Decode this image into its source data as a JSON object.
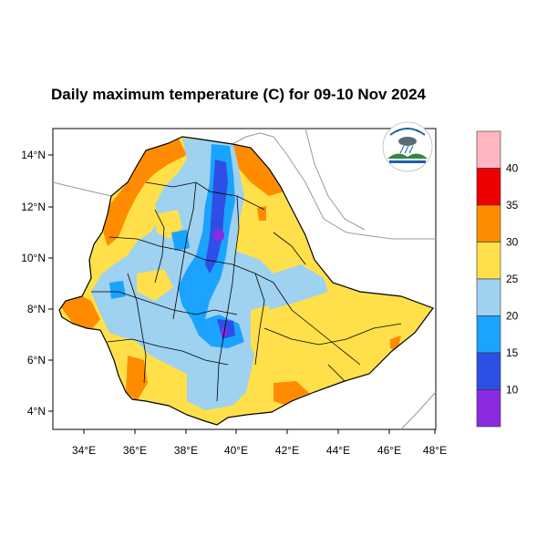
{
  "title": "Daily maximum temperature (C) for 09-10 Nov 2024",
  "map": {
    "lon_range": [
      33,
      48
    ],
    "lat_range": [
      3.2,
      15
    ],
    "x_ticks": [
      "34°E",
      "36°E",
      "38°E",
      "40°E",
      "42°E",
      "44°E",
      "46°E",
      "48°E"
    ],
    "y_ticks": [
      "14°N",
      "12°N",
      "10°N",
      "8°N",
      "6°N",
      "4°N"
    ],
    "logo_name": "ethiopian-meteorology-institute-logo"
  },
  "colorbar": {
    "labels": [
      "40",
      "35",
      "30",
      "25",
      "20",
      "15",
      "10"
    ],
    "colors": [
      "#ffb6c1",
      "#ee0000",
      "#ff8c00",
      "#ffe04a",
      "#9fd1f0",
      "#1aa3ff",
      "#2d4fe6",
      "#8a2be2"
    ]
  },
  "palette": {
    "orange": "#ff8c00",
    "yellow": "#ffe04a",
    "light_blue": "#9fd1f0",
    "blue": "#1aa3ff",
    "dark_blue": "#2d4fe6",
    "purple": "#8a2be2"
  }
}
